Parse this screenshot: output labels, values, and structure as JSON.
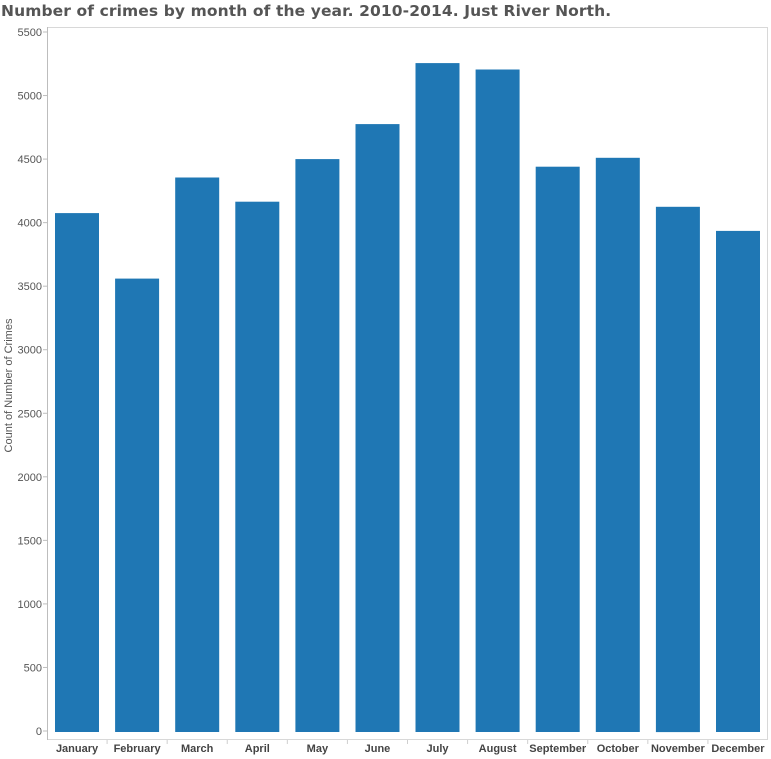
{
  "chart_data": {
    "type": "bar",
    "title": "Number of crimes by month of the year. 2010-2014.  Just River North.",
    "xlabel": "",
    "ylabel": "Count of Number of Crimes",
    "categories": [
      "January",
      "February",
      "March",
      "April",
      "May",
      "June",
      "July",
      "August",
      "September",
      "October",
      "November",
      "December"
    ],
    "values": [
      4075,
      3560,
      4355,
      4165,
      4500,
      4775,
      5255,
      5205,
      4440,
      4510,
      4125,
      3935
    ],
    "ylim": [
      0,
      5500
    ],
    "yticks": [
      "0",
      "500",
      "1000",
      "1500",
      "2000",
      "2500",
      "3000",
      "3500",
      "4000",
      "4500",
      "5000",
      "5500"
    ],
    "bar_color": "#1f77b4",
    "grid": false,
    "legend": "none"
  }
}
